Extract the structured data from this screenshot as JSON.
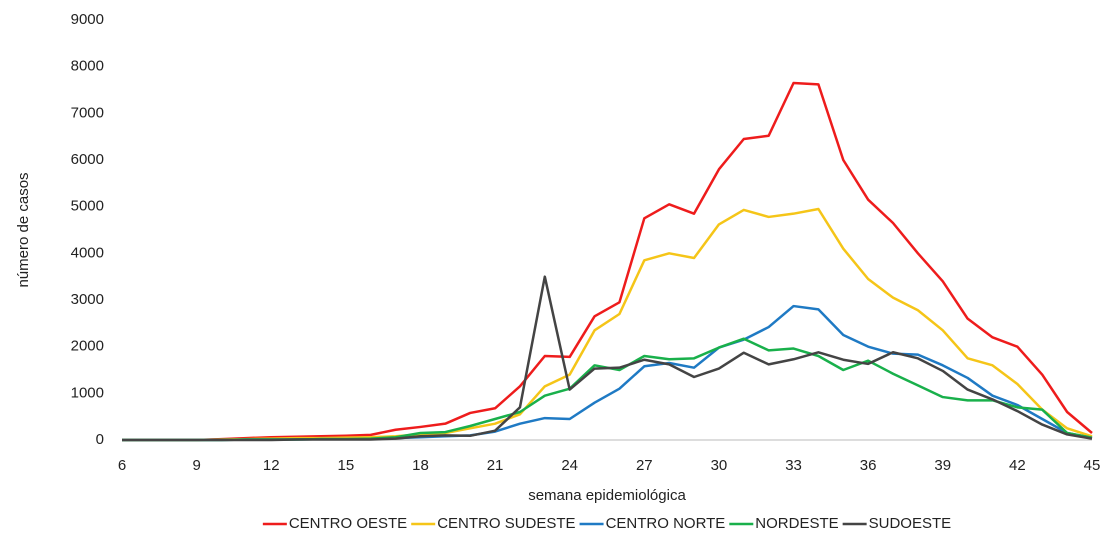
{
  "chart_data": {
    "type": "line",
    "ylabel": "número de casos",
    "xlabel": "semana epidemiológica",
    "x": [
      6,
      7,
      8,
      9,
      10,
      11,
      12,
      13,
      14,
      15,
      16,
      17,
      18,
      19,
      20,
      21,
      22,
      23,
      24,
      25,
      26,
      27,
      28,
      29,
      30,
      31,
      32,
      33,
      34,
      35,
      36,
      37,
      38,
      39,
      40,
      41,
      42,
      43,
      44,
      45
    ],
    "xlim": [
      6,
      45
    ],
    "xticks": [
      6,
      9,
      12,
      15,
      18,
      21,
      24,
      27,
      30,
      33,
      36,
      39,
      42,
      45
    ],
    "ylim": [
      0,
      9000
    ],
    "yticks": [
      0,
      1000,
      2000,
      3000,
      4000,
      5000,
      6000,
      7000,
      8000,
      9000
    ],
    "grid": false,
    "legend": "bottom",
    "series": [
      {
        "name": "CENTRO OESTE",
        "color": "#ee1c1c",
        "values": [
          0,
          0,
          0,
          0,
          20,
          40,
          60,
          70,
          80,
          90,
          110,
          220,
          280,
          350,
          580,
          680,
          1150,
          1800,
          1780,
          2650,
          2950,
          4750,
          5050,
          4850,
          5800,
          6450,
          6520,
          7650,
          7620,
          6000,
          5150,
          4650,
          4000,
          3400,
          2600,
          2200,
          2000,
          1400,
          600,
          150
        ]
      },
      {
        "name": "CENTRO SUDESTE",
        "color": "#f5c518",
        "values": [
          0,
          0,
          0,
          0,
          10,
          20,
          30,
          40,
          40,
          50,
          60,
          80,
          120,
          150,
          250,
          350,
          550,
          1150,
          1400,
          2350,
          2700,
          3850,
          4000,
          3900,
          4620,
          4930,
          4780,
          4850,
          4950,
          4100,
          3450,
          3050,
          2780,
          2350,
          1750,
          1600,
          1200,
          650,
          250,
          80
        ]
      },
      {
        "name": "CENTRO NORTE",
        "color": "#1f7ac4",
        "values": [
          0,
          0,
          0,
          0,
          0,
          10,
          10,
          10,
          20,
          20,
          20,
          40,
          60,
          80,
          100,
          180,
          350,
          470,
          450,
          800,
          1100,
          1580,
          1650,
          1550,
          1980,
          2150,
          2420,
          2870,
          2800,
          2250,
          2000,
          1850,
          1830,
          1600,
          1330,
          950,
          750,
          450,
          150,
          50
        ]
      },
      {
        "name": "NORDESTE",
        "color": "#19b04b",
        "values": [
          0,
          0,
          0,
          0,
          0,
          10,
          10,
          10,
          20,
          20,
          30,
          60,
          150,
          170,
          300,
          450,
          600,
          950,
          1100,
          1600,
          1500,
          1800,
          1730,
          1750,
          1980,
          2170,
          1920,
          1960,
          1800,
          1500,
          1700,
          1420,
          1170,
          920,
          850,
          850,
          700,
          650,
          150,
          50
        ]
      },
      {
        "name": "SUDOESTE",
        "color": "#444444",
        "values": [
          0,
          0,
          0,
          0,
          0,
          0,
          0,
          10,
          10,
          10,
          10,
          30,
          80,
          100,
          90,
          200,
          700,
          3500,
          1080,
          1530,
          1550,
          1720,
          1620,
          1350,
          1530,
          1870,
          1620,
          1730,
          1880,
          1720,
          1630,
          1880,
          1750,
          1480,
          1080,
          870,
          620,
          330,
          120,
          30
        ]
      }
    ]
  }
}
